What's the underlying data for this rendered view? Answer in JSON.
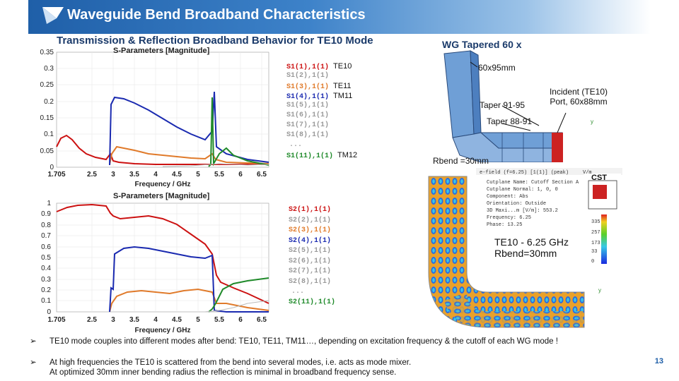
{
  "header": {
    "title": "Waveguide Bend Broadband Characteristics"
  },
  "subtitle": "Transmission & Reflection Broadband Behavior for TE10 Mode",
  "wg_title": "WG Tapered 60 x",
  "wg_annotations": {
    "size": "60x95mm",
    "taper1": "Taper 91-95",
    "taper2": "Taper 88-91",
    "port": "Incident (TE10) Port, 60x88mm",
    "rbend": "Rbend =30mm"
  },
  "field_panel": {
    "header": "e-field (f=6.25) [1(1)] (peak)",
    "unit": "V/m",
    "logo": "CST",
    "props": [
      "Cutplane Name:   Cutoff Section A",
      "Cutplane Normal:  1, 0, 0",
      "Component:        Abs",
      "Orientation:      Outside",
      "3D Maxi...m [V/m]: 553.2",
      "Frequency:        6.25",
      "Phase:            13.25"
    ],
    "scale": [
      "335",
      "257",
      "173",
      "33",
      "0"
    ],
    "caption_l1": "TE10 -  6.25 GHz",
    "caption_l2": "Rbend=30mm"
  },
  "charts": {
    "top": {
      "title": "S-Parameters [Magnitude]",
      "xlabel": "Frequency / GHz",
      "yticks": [
        "0.35",
        "0.3",
        "0.25",
        "0.2",
        "0.15",
        "0.1",
        "0.05",
        "0"
      ],
      "xticks": [
        "1.705",
        "2.5",
        "3",
        "3.5",
        "4",
        "4.5",
        "5",
        "5.5",
        "6",
        "6.5"
      ],
      "legend": [
        {
          "label": "S1(1),1(1)",
          "mode": "TE10",
          "color": "#cc1111"
        },
        {
          "label": "S1(2),1(1)",
          "mode": "",
          "color": "#999999"
        },
        {
          "label": "S1(3),1(1)",
          "mode": "TE11",
          "color": "#e07a2a"
        },
        {
          "label": "S1(4),1(1)",
          "mode": "TM11",
          "color": "#1a2ab0"
        },
        {
          "label": "S1(5),1(1)",
          "mode": "",
          "color": "#999999"
        },
        {
          "label": "S1(6),1(1)",
          "mode": "",
          "color": "#999999"
        },
        {
          "label": "S1(7),1(1)",
          "mode": "",
          "color": "#999999"
        },
        {
          "label": "S1(8),1(1)",
          "mode": "",
          "color": "#999999"
        },
        {
          "label": "S1(11),1(1)",
          "mode": "TM12",
          "color": "#1f8a2a"
        }
      ]
    },
    "bottom": {
      "title": "S-Parameters [Magnitude]",
      "xlabel": "Frequency / GHz",
      "yticks": [
        "1",
        "0.9",
        "0.8",
        "0.7",
        "0.6",
        "0.5",
        "0.4",
        "0.3",
        "0.2",
        "0.1",
        "0"
      ],
      "xticks": [
        "1.705",
        "2.5",
        "3",
        "3.5",
        "4",
        "4.5",
        "5",
        "5.5",
        "6",
        "6.5"
      ],
      "legend": [
        {
          "label": "S2(1),1(1)",
          "color": "#cc1111"
        },
        {
          "label": "S2(2),1(1)",
          "color": "#999999"
        },
        {
          "label": "S2(3),1(1)",
          "color": "#e07a2a"
        },
        {
          "label": "S2(4),1(1)",
          "color": "#1a2ab0"
        },
        {
          "label": "S2(5),1(1)",
          "color": "#999999"
        },
        {
          "label": "S2(6),1(1)",
          "color": "#999999"
        },
        {
          "label": "S2(7),1(1)",
          "color": "#999999"
        },
        {
          "label": "S2(8),1(1)",
          "color": "#999999"
        },
        {
          "label": "S2(11),1(1)",
          "color": "#1f8a2a"
        }
      ]
    }
  },
  "bullets": [
    "TE10 mode couples into different modes after bend: TE10, TE11, TM11…, depending on excitation frequency & the cutoff of each WG mode !",
    "At high frequencies the TE10 is scattered from the bend into several modes, i.e. acts as mode mixer.",
    "At optimized 30mm inner bending radius the reflection is minimal in broadband frequency sense."
  ],
  "page_number": "13"
}
